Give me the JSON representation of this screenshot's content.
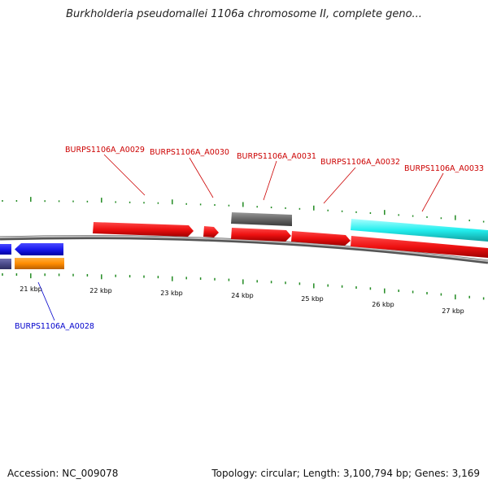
{
  "title": "Burkholderia pseudomallei 1106a chromosome II, complete geno...",
  "scale_labels": [
    "21 kbp",
    "22 kbp",
    "23 kbp",
    "24 kbp",
    "25 kbp",
    "26 kbp",
    "27 kbp"
  ],
  "gene_labels": [
    {
      "name": "BURPS1106A_A0028",
      "color": "#0000cc"
    },
    {
      "name": "BURPS1106A_A0029",
      "color": "#cc0000"
    },
    {
      "name": "BURPS1106A_A0030",
      "color": "#cc0000"
    },
    {
      "name": "BURPS1106A_A0031",
      "color": "#cc0000"
    },
    {
      "name": "BURPS1106A_A0032",
      "color": "#cc0000"
    },
    {
      "name": "BURPS1106A_A0033",
      "color": "#cc0000"
    }
  ],
  "footer": {
    "accession": "Accession: NC_009078",
    "topology": "Topology: circular; Length: 3,100,794 bp; Genes: 3,169"
  },
  "colors": {
    "forward_gene": "#ee1111",
    "reverse_gene": "#1a1aee",
    "orange_feature": "#ff8c00",
    "purple_feature": "#4b4b8a",
    "gray_feature": "#666666",
    "cyan_feature": "#22eeee",
    "tick": "#228b22",
    "backbone": "#888888"
  }
}
